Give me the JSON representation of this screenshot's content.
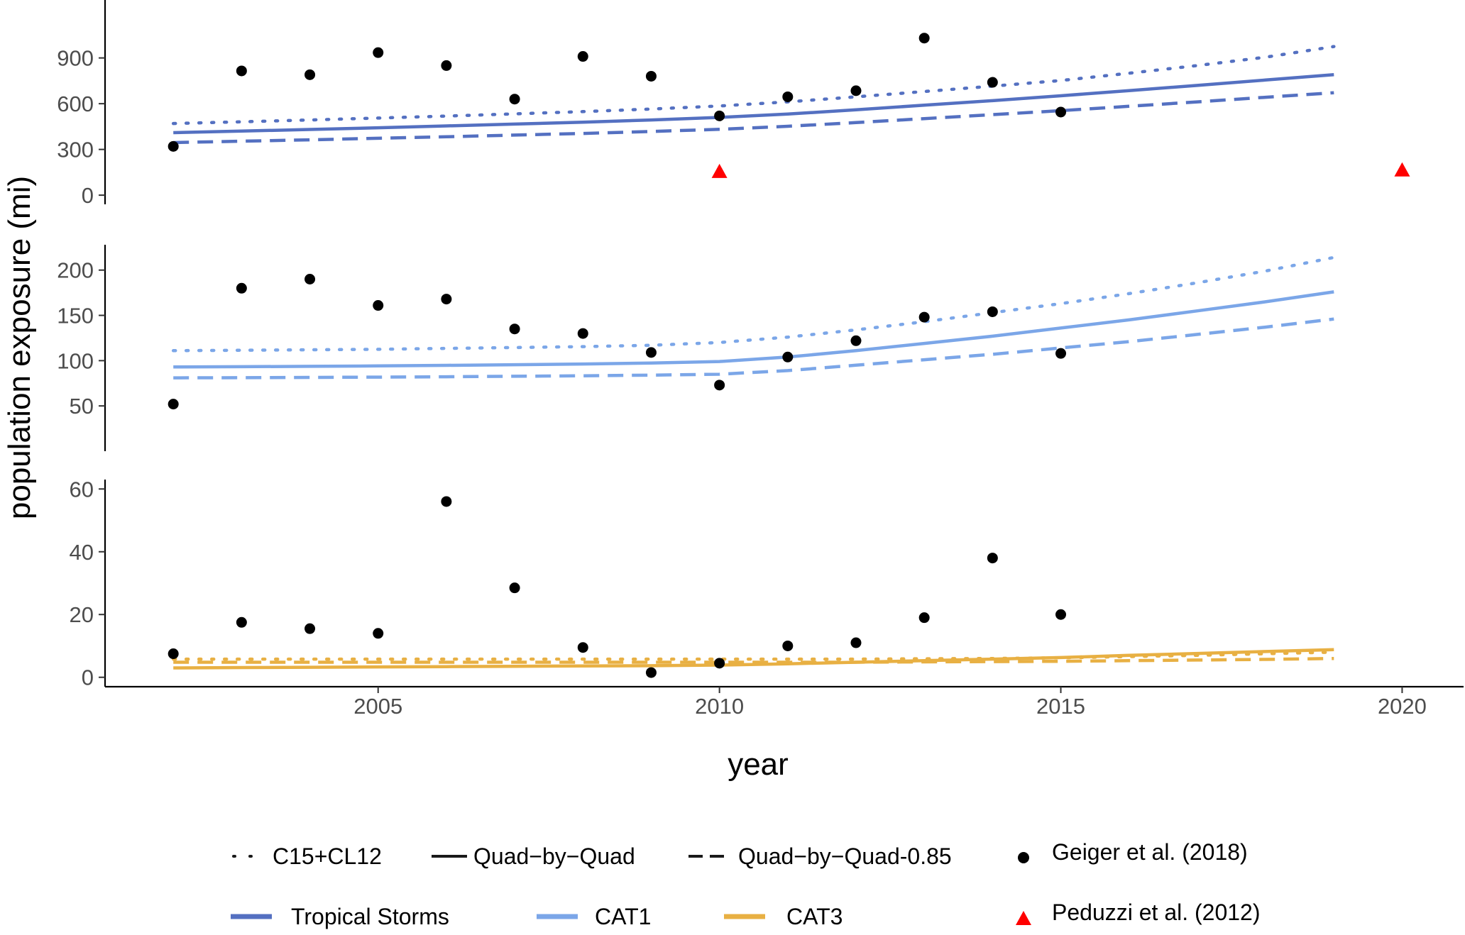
{
  "chart_data": {
    "type": "line",
    "xlabel": "year",
    "ylabel": "population exposure (mi)",
    "x_ticks": [
      2005,
      2010,
      2015,
      2020
    ],
    "xlim": [
      2001,
      2020.9
    ],
    "line_types": [
      {
        "name": "C15+CL12",
        "dash": "dotted"
      },
      {
        "name": "Quad−by−Quad",
        "dash": "solid"
      },
      {
        "name": "Quad−by−Quad-0.85",
        "dash": "dashed"
      }
    ],
    "observation_sources": [
      {
        "name": "Geiger et al. (2018)",
        "marker": "circle",
        "color": "#000000"
      },
      {
        "name": "Peduzzi et al. (2012)",
        "marker": "triangle",
        "color": "#ff0000"
      }
    ],
    "panels": [
      {
        "category": "Tropical Storms",
        "color": "#5470c1",
        "ylim": [
          -60,
          1280
        ],
        "y_ticks": [
          0,
          300,
          600,
          900
        ],
        "model_x": [
          2002,
          2003,
          2004,
          2005,
          2006,
          2007,
          2008,
          2009,
          2010,
          2011,
          2012,
          2013,
          2014,
          2015,
          2016,
          2017,
          2018,
          2019
        ],
        "series": [
          {
            "name": "C15+CL12",
            "dash": "dotted",
            "values": [
              470,
              481,
              493,
              506,
              519,
              533,
              548,
              565,
              585,
              612,
              645,
              680,
              715,
              752,
              800,
              850,
              905,
              975
            ]
          },
          {
            "name": "Quad−by−Quad",
            "dash": "solid",
            "values": [
              410,
              420,
              431,
              442,
              454,
              466,
              479,
              493,
              510,
              532,
              560,
              590,
              620,
              652,
              686,
              720,
              755,
              790
            ]
          },
          {
            "name": "Quad−by−Quad-0.85",
            "dash": "dashed",
            "values": [
              345,
              354,
              363,
              373,
              383,
              394,
              405,
              418,
              432,
              452,
              476,
              502,
              528,
              554,
              583,
              612,
              642,
              672
            ]
          }
        ],
        "geiger": {
          "x": [
            2002,
            2003,
            2004,
            2005,
            2006,
            2007,
            2008,
            2009,
            2010,
            2011,
            2012,
            2013,
            2014,
            2015
          ],
          "y": [
            320,
            815,
            790,
            935,
            850,
            630,
            910,
            780,
            520,
            645,
            685,
            1030,
            740,
            545
          ]
        },
        "peduzzi": {
          "x": [
            2010,
            2020
          ],
          "y": [
            150,
            160
          ]
        }
      },
      {
        "category": "CAT1",
        "color": "#7ba6e8",
        "ylim": [
          0,
          228
        ],
        "y_ticks": [
          50,
          100,
          150,
          200
        ],
        "model_x": [
          2002,
          2003,
          2004,
          2005,
          2006,
          2007,
          2008,
          2009,
          2010,
          2011,
          2012,
          2013,
          2014,
          2015,
          2016,
          2017,
          2018,
          2019
        ],
        "series": [
          {
            "name": "C15+CL12",
            "dash": "dotted",
            "values": [
              111,
              111.5,
              112,
              112.5,
              113.5,
              114.5,
              115.5,
              117,
              120,
              126,
              134,
              143,
              153,
              163,
              174,
              186,
              199,
              214
            ]
          },
          {
            "name": "Quad−by−Quad",
            "dash": "solid",
            "values": [
              93,
              93.3,
              93.7,
              94.2,
              94.8,
              95.5,
              96.3,
              97.3,
              99,
              104,
              111,
              119,
              127,
              136,
              145,
              155,
              165,
              176
            ]
          },
          {
            "name": "Quad−by−Quad-0.85",
            "dash": "dashed",
            "values": [
              81,
              81.2,
              81.5,
              81.8,
              82.2,
              82.7,
              83.3,
              84,
              85,
              89,
              95,
              101,
              107,
              114,
              121,
              129,
              137,
              146
            ]
          }
        ],
        "geiger": {
          "x": [
            2002,
            2003,
            2004,
            2005,
            2006,
            2007,
            2008,
            2009,
            2010,
            2011,
            2012,
            2013,
            2014,
            2015
          ],
          "y": [
            52,
            180,
            190,
            161,
            168,
            135,
            130,
            109,
            73,
            104,
            122,
            148,
            154,
            108
          ]
        }
      },
      {
        "category": "CAT3",
        "color": "#e8b043",
        "ylim": [
          -3,
          63
        ],
        "y_ticks": [
          0,
          20,
          40,
          60
        ],
        "model_x": [
          2002,
          2003,
          2004,
          2005,
          2006,
          2007,
          2008,
          2009,
          2010,
          2011,
          2012,
          2013,
          2014,
          2015,
          2016,
          2017,
          2018,
          2019
        ],
        "series": [
          {
            "name": "C15+CL12",
            "dash": "dotted",
            "values": [
              5.8,
              5.8,
              5.8,
              5.8,
              5.8,
              5.8,
              5.8,
              5.8,
              5.8,
              5.8,
              5.8,
              5.9,
              6,
              6.2,
              6.6,
              7,
              7.5,
              8
            ]
          },
          {
            "name": "Quad−by−Quad",
            "dash": "solid",
            "values": [
              3,
              3.1,
              3.2,
              3.3,
              3.4,
              3.5,
              3.6,
              3.7,
              3.9,
              4.3,
              4.8,
              5.3,
              5.8,
              6.3,
              7,
              7.6,
              8.2,
              8.8
            ]
          },
          {
            "name": "Quad−by−Quad-0.85",
            "dash": "dashed",
            "values": [
              4.8,
              4.8,
              4.8,
              4.8,
              4.8,
              4.8,
              4.8,
              4.8,
              4.8,
              4.8,
              4.8,
              4.9,
              5,
              5.1,
              5.3,
              5.5,
              5.7,
              6
            ]
          }
        ],
        "geiger": {
          "x": [
            2002,
            2003,
            2004,
            2005,
            2006,
            2007,
            2008,
            2009,
            2010,
            2011,
            2012,
            2013,
            2014,
            2015
          ],
          "y": [
            7.5,
            17.5,
            15.5,
            14,
            56,
            28.5,
            9.5,
            1.5,
            4.5,
            10,
            11,
            19,
            38,
            20
          ]
        }
      }
    ]
  }
}
